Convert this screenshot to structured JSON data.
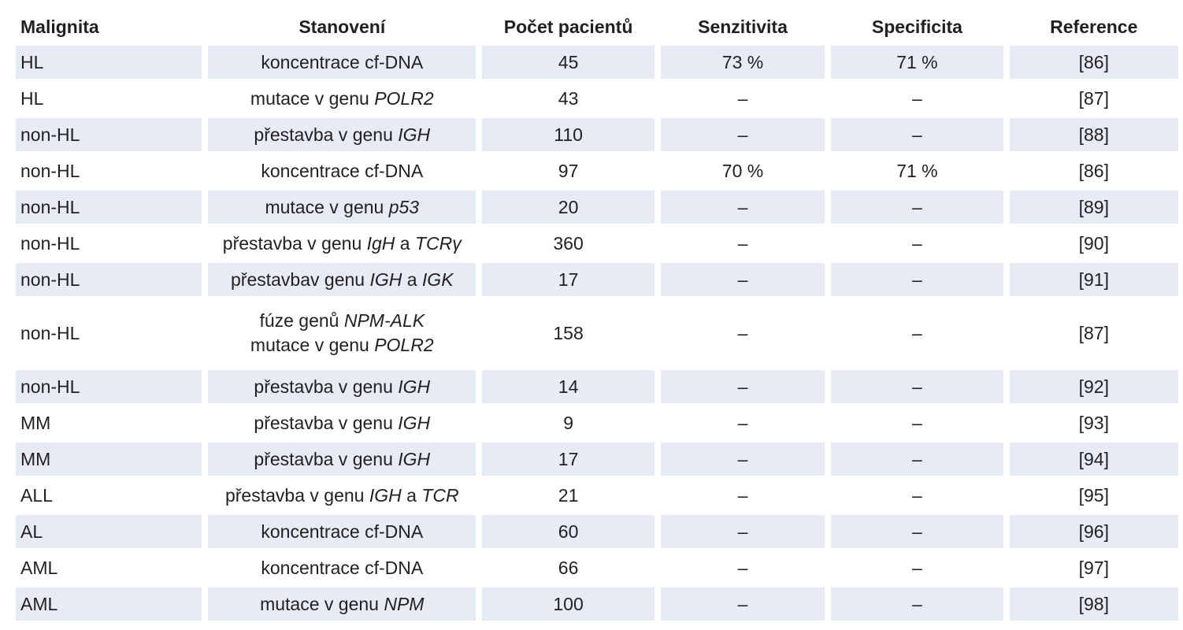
{
  "table": {
    "headers": [
      "Malignita",
      "Stanovení",
      "Počet pacientů",
      "Senzitivita",
      "Specificita",
      "Reference"
    ],
    "rows": [
      {
        "malignita": "HL",
        "stanoveni": [
          [
            "koncentrace cf-DNA"
          ]
        ],
        "pocet": "45",
        "senzitivita": "73 %",
        "specificita": "71 %",
        "reference": "[86]"
      },
      {
        "malignita": "HL",
        "stanoveni": [
          [
            "mutace v genu ",
            "POLR2"
          ]
        ],
        "pocet": "43",
        "senzitivita": "–",
        "specificita": "–",
        "reference": "[87]"
      },
      {
        "malignita": "non-HL",
        "stanoveni": [
          [
            "přestavba v genu ",
            "IGH"
          ]
        ],
        "pocet": "110",
        "senzitivita": "–",
        "specificita": "–",
        "reference": "[88]"
      },
      {
        "malignita": "non-HL",
        "stanoveni": [
          [
            "koncentrace cf-DNA"
          ]
        ],
        "pocet": "97",
        "senzitivita": "70 %",
        "specificita": "71 %",
        "reference": "[86]"
      },
      {
        "malignita": "non-HL",
        "stanoveni": [
          [
            "mutace v genu ",
            "p53"
          ]
        ],
        "pocet": "20",
        "senzitivita": "–",
        "specificita": "–",
        "reference": "[89]"
      },
      {
        "malignita": "non-HL",
        "stanoveni": [
          [
            "přestavba v genu ",
            "IgH",
            " a ",
            "TCRγ"
          ]
        ],
        "pocet": "360",
        "senzitivita": "–",
        "specificita": "–",
        "reference": "[90]"
      },
      {
        "malignita": "non-HL",
        "stanoveni": [
          [
            "přestavbav genu ",
            "IGH",
            " a ",
            "IGK"
          ]
        ],
        "pocet": "17",
        "senzitivita": "–",
        "specificita": "–",
        "reference": "[91]"
      },
      {
        "malignita": "non-HL",
        "stanoveni": [
          [
            "fúze genů ",
            "NPM-ALK"
          ],
          [
            "mutace v genu ",
            "POLR2"
          ]
        ],
        "pocet": "158",
        "senzitivita": "–",
        "specificita": "–",
        "reference": "[87]"
      },
      {
        "malignita": "non-HL",
        "stanoveni": [
          [
            "přestavba v genu ",
            "IGH"
          ]
        ],
        "pocet": "14",
        "senzitivita": "–",
        "specificita": "–",
        "reference": "[92]"
      },
      {
        "malignita": "MM",
        "stanoveni": [
          [
            "přestavba v genu ",
            "IGH"
          ]
        ],
        "pocet": "9",
        "senzitivita": "–",
        "specificita": "–",
        "reference": "[93]"
      },
      {
        "malignita": "MM",
        "stanoveni": [
          [
            "přestavba v genu ",
            "IGH"
          ]
        ],
        "pocet": "17",
        "senzitivita": "–",
        "specificita": "–",
        "reference": "[94]"
      },
      {
        "malignita": "ALL",
        "stanoveni": [
          [
            "přestavba v genu ",
            "IGH",
            " a ",
            "TCR"
          ]
        ],
        "pocet": "21",
        "senzitivita": "–",
        "specificita": "–",
        "reference": "[95]"
      },
      {
        "malignita": "AL",
        "stanoveni": [
          [
            "koncentrace cf-DNA"
          ]
        ],
        "pocet": "60",
        "senzitivita": "–",
        "specificita": "–",
        "reference": "[96]"
      },
      {
        "malignita": "AML",
        "stanoveni": [
          [
            "koncentrace cf-DNA"
          ]
        ],
        "pocet": "66",
        "senzitivita": "–",
        "specificita": "–",
        "reference": "[97]"
      },
      {
        "malignita": "AML",
        "stanoveni": [
          [
            "mutace v genu ",
            "NPM"
          ]
        ],
        "pocet": "100",
        "senzitivita": "–",
        "specificita": "–",
        "reference": "[98]"
      }
    ]
  }
}
